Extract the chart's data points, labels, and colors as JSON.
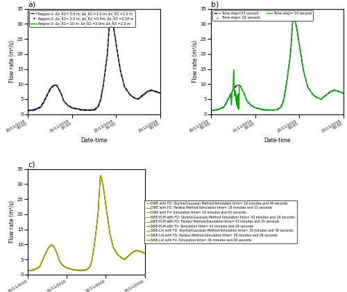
{
  "title_a": "a)",
  "title_b": "b)",
  "title_c": "c)",
  "ylabel": "Flow rate (m³/s)",
  "xlabel_ab": "Date-time",
  "xlabel_c": "Date",
  "ylim": [
    0,
    35
  ],
  "yticks": [
    0,
    5,
    10,
    15,
    20,
    25,
    30,
    35
  ],
  "legend_a": [
    "Region-1: Δx_R1= 5.0 m; Δx_R2 =1.0 m; Δx_R3 =1.0 m",
    "Region-2: Δx_R1= 2.5 m; Δx_R2 =0.5m; Δx_R3 =0.50 m",
    "Region-3: Δx_R1= 10 m; Δx_R2 =2.0m; Δx_R3 =2.0 m"
  ],
  "legend_b_col1": [
    "Time step=03 second",
    "Time step= 10 second"
  ],
  "legend_b_col2": [
    "Time step= 02 second"
  ],
  "legend_b": [
    "Time step=03 second",
    "Time step= 02 second",
    "Time step= 10 second"
  ],
  "legend_c": [
    "DWE with FD: Skyline/Gaussian Method-Simulation time= 18 minutes and 46 seconds",
    "DWE with FD: Pardiso Method-Simulation time= 18 minutes and 15 seconds",
    "DWE with FV- Simulation time= 19 minutes and 05 seconds",
    "SWE-ELM with FD: Skyline/Gaussian Method-Simulation time= 43 minutes and 19 seconds",
    "SWE-ELM with FD: Pardiso Method-Simulation time= 43 minutes and 35 seconds",
    "SWE-ELM with FV- Simulation time= 43 minutes and 29 seconds",
    "SWE-LIA with FD: Skyline/Gaussian Method-Simulation time= 35 minutes and 30 seconds",
    "SWE-LIA with FD: Pardiso Method-Simulation time= 38 minutes and 06 seconds",
    "SWE-LIA with FV- Simulation time= 36 minutes and 09 seconds"
  ],
  "color_black": "#000000",
  "color_purple": "#7B2FBE",
  "color_green": "#00AA00",
  "color_teal": "#4DBEAA",
  "color_olive": "#999900",
  "xtick_ab": [
    "20/11/2016\n00:00",
    "21/11/2016\n00:00",
    "22/11/2016\n00:00",
    "23/11/2016\n00:00"
  ],
  "xtick_c": [
    "20/11/2016",
    "21/11/2016",
    "22/11/2016",
    "23/11/2016"
  ],
  "hydrograph_t": [
    0.0,
    0.05,
    0.1,
    0.13,
    0.17,
    0.2,
    0.22,
    0.25,
    0.27,
    0.3,
    0.33,
    0.37,
    0.4,
    0.43,
    0.47,
    0.5,
    0.53,
    0.55,
    0.57,
    0.6,
    0.62,
    0.63,
    0.65,
    0.67,
    0.7,
    0.73,
    0.77,
    0.8,
    0.83,
    0.87,
    0.9,
    0.93,
    0.97,
    1.0
  ],
  "hydrograph_v": [
    1.2,
    1.5,
    2.5,
    5.0,
    8.5,
    9.8,
    9.5,
    7.0,
    4.5,
    3.0,
    2.2,
    1.8,
    1.5,
    1.4,
    1.4,
    1.5,
    2.5,
    5.0,
    10.0,
    20.0,
    33.0,
    32.0,
    28.0,
    22.0,
    14.0,
    9.0,
    6.5,
    5.5,
    5.0,
    6.5,
    7.5,
    8.0,
    7.5,
    7.0
  ],
  "spike_t": [
    0.155,
    0.165,
    0.172,
    0.18,
    0.188,
    0.195,
    0.202,
    0.21
  ],
  "spike_v": [
    3.0,
    8.0,
    15.0,
    6.0,
    4.5,
    3.0,
    2.0,
    1.5
  ]
}
